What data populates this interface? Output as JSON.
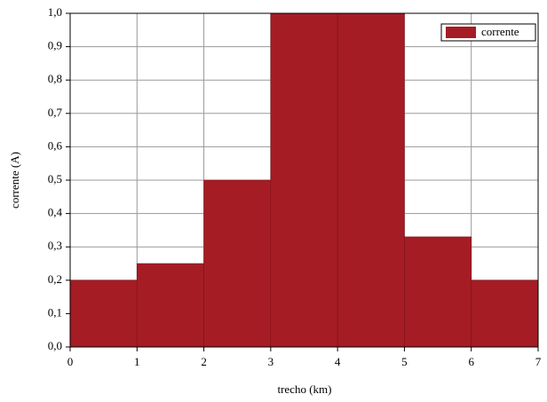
{
  "chart_data": {
    "type": "histogram",
    "bins": [
      0,
      1,
      2,
      3,
      4,
      5,
      6,
      7
    ],
    "values": [
      0.2,
      0.25,
      0.5,
      1.0,
      1.0,
      0.33,
      0.2
    ],
    "color": "#a51c24",
    "series_name": "corrente",
    "x_label": "trecho (km)",
    "y_label": "corrente (A)",
    "xlim": [
      0,
      7
    ],
    "xticks": [
      0,
      1,
      2,
      3,
      4,
      5,
      6,
      7
    ],
    "ylim": [
      0,
      1
    ],
    "yticks": [
      {
        "value": 0,
        "label": "0,0"
      },
      {
        "value": 0.1,
        "label": "0,1"
      },
      {
        "value": 0.2,
        "label": "0,2"
      },
      {
        "value": 0.3,
        "label": "0,3"
      },
      {
        "value": 0.4,
        "label": "0,4"
      },
      {
        "value": 0.5,
        "label": "0,5"
      },
      {
        "value": 0.6,
        "label": "0,6"
      },
      {
        "value": 0.7,
        "label": "0,7"
      },
      {
        "value": 0.8,
        "label": "0,8"
      },
      {
        "value": 0.9,
        "label": "0,9"
      },
      {
        "value": 1,
        "label": "1,0"
      }
    ],
    "grid": true,
    "legend": "top-right"
  }
}
